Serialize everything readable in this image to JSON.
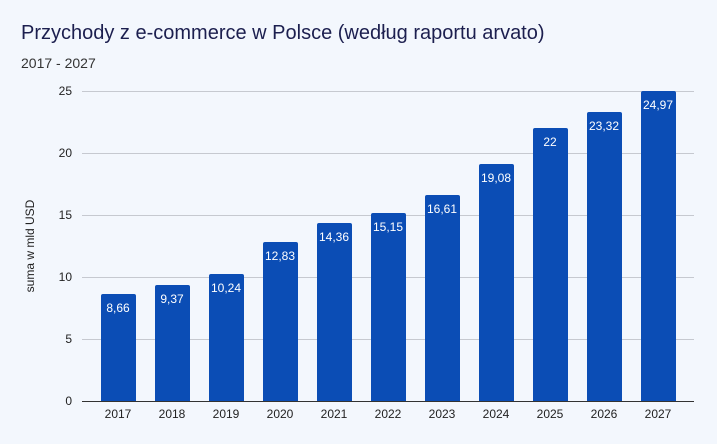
{
  "header": {
    "title": "Przychody z e-commerce w Polsce (według raportu arvato)",
    "subtitle": "2017 - 2027"
  },
  "chart_data": {
    "type": "bar",
    "title": "Przychody z e-commerce w Polsce (według raportu arvato)",
    "subtitle": "2017 - 2027",
    "xlabel": "",
    "ylabel": "suma w mld USD",
    "ylim": [
      0,
      25
    ],
    "yticks": [
      0,
      5,
      10,
      15,
      20,
      25
    ],
    "grid": true,
    "legend": null,
    "bar_color": "#0b4db5",
    "categories": [
      "2017",
      "2018",
      "2019",
      "2020",
      "2021",
      "2022",
      "2023",
      "2024",
      "2025",
      "2026",
      "2027"
    ],
    "values": [
      8.66,
      9.37,
      10.24,
      12.83,
      14.36,
      15.15,
      16.61,
      19.08,
      22,
      23.32,
      24.97
    ],
    "data_labels": [
      "8,66",
      "9,37",
      "10,24",
      "12,83",
      "14,36",
      "15,15",
      "16,61",
      "19,08",
      "22",
      "23,32",
      "24,97"
    ]
  }
}
